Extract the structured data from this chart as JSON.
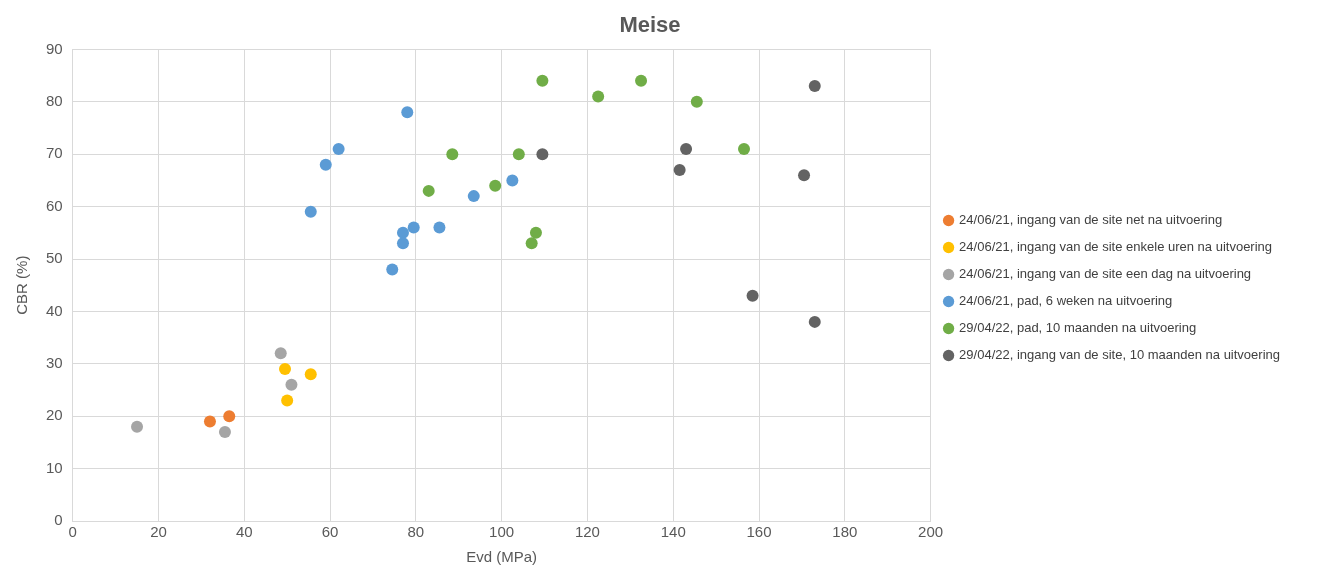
{
  "chart_data": {
    "type": "scatter",
    "title": "Meise",
    "xlabel": "Evd (MPa)",
    "ylabel": "CBR (%)",
    "xlim": [
      0,
      200
    ],
    "xticks": [
      0,
      20,
      40,
      60,
      80,
      100,
      120,
      140,
      160,
      180,
      200
    ],
    "ylim": [
      0,
      90
    ],
    "yticks": [
      0,
      10,
      20,
      30,
      40,
      50,
      60,
      70,
      80,
      90
    ],
    "grid": true,
    "legend": "right",
    "marker": "circle",
    "series": [
      {
        "name": "24/06/21, ingang van de site net na uitvoering",
        "color": "#ed7d31",
        "x": [
          32,
          36.5
        ],
        "values": [
          19,
          20
        ]
      },
      {
        "name": "24/06/21, ingang van de site enkele uren na uitvoering",
        "color": "#ffc000",
        "x": [
          49.5,
          50,
          55.5
        ],
        "values": [
          29,
          23,
          28
        ]
      },
      {
        "name": "24/06/21, ingang van de site een dag na uitvoering",
        "color": "#a5a5a5",
        "x": [
          15,
          35.5,
          48.5,
          51
        ],
        "values": [
          18,
          17,
          32,
          26
        ]
      },
      {
        "name": "24/06/21, pad, 6 weken na uitvoering",
        "color": "#5b9bd5",
        "x": [
          55.5,
          59,
          62,
          78,
          74.5,
          77,
          77,
          79.5,
          85.5,
          93.5,
          102.5
        ],
        "values": [
          59,
          68,
          71,
          78,
          48,
          55,
          53,
          56,
          56,
          62,
          65
        ]
      },
      {
        "name": "29/04/22, pad, 10 maanden na uitvoering",
        "color": "#70ad47",
        "x": [
          83,
          88.5,
          98.5,
          104,
          107,
          108,
          109.5,
          122.5,
          132.5,
          145.5,
          156.5
        ],
        "values": [
          63,
          70,
          64,
          70,
          53,
          55,
          84,
          81,
          84,
          80,
          71
        ]
      },
      {
        "name": "29/04/22, ingang van de site, 10 maanden na uitvoering",
        "color": "#636363",
        "x": [
          109.5,
          141.5,
          143,
          158.5,
          170.5,
          173,
          173
        ],
        "values": [
          70,
          67,
          71,
          43,
          66,
          83,
          38
        ]
      }
    ]
  }
}
